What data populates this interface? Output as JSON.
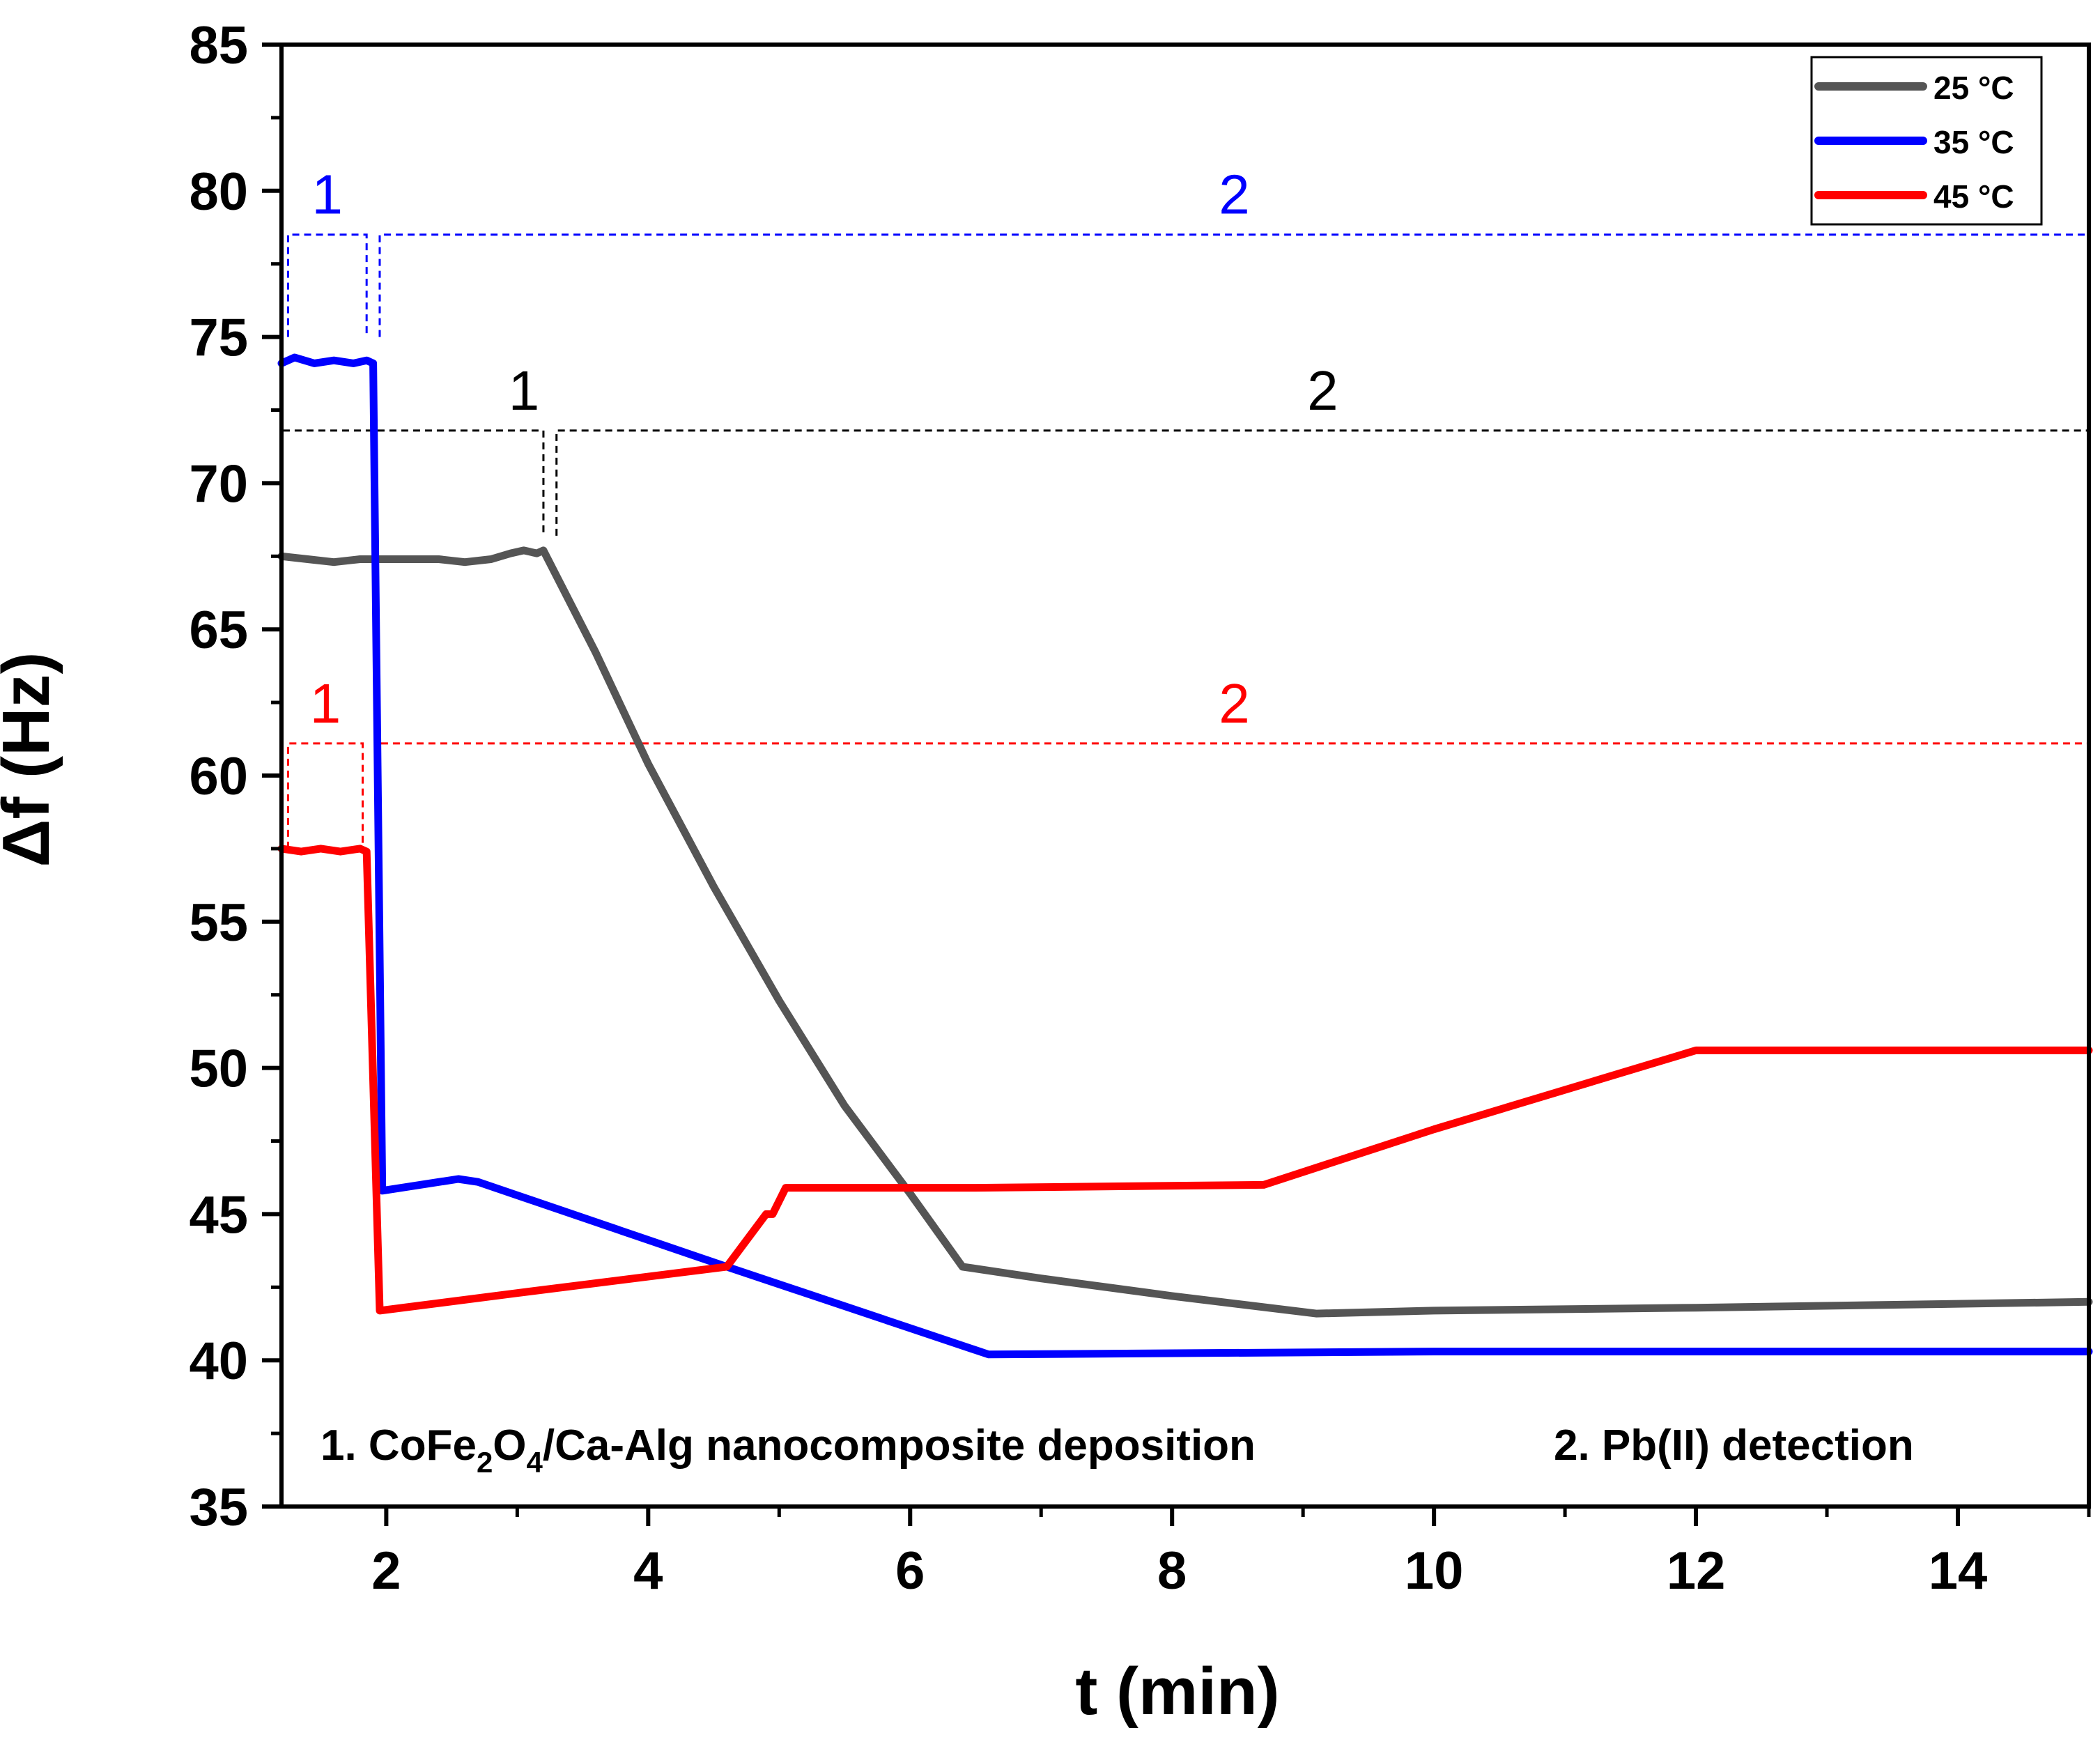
{
  "chart_data": {
    "type": "line",
    "xlabel": "t (min)",
    "ylabel": "Δf (Hz)",
    "xlim": [
      1.2,
      15
    ],
    "ylim": [
      35,
      85
    ],
    "xticks": [
      2,
      4,
      6,
      8,
      10,
      12,
      14
    ],
    "yticks": [
      35,
      40,
      45,
      50,
      55,
      60,
      65,
      70,
      75,
      80,
      85
    ],
    "legend": {
      "position": "top-right"
    },
    "series": [
      {
        "name": "25 °C",
        "color": "#555555",
        "points": [
          [
            1.2,
            67.5
          ],
          [
            1.4,
            67.4
          ],
          [
            1.6,
            67.3
          ],
          [
            1.8,
            67.4
          ],
          [
            2.0,
            67.4
          ],
          [
            2.2,
            67.4
          ],
          [
            2.4,
            67.4
          ],
          [
            2.6,
            67.3
          ],
          [
            2.8,
            67.4
          ],
          [
            2.95,
            67.6
          ],
          [
            3.05,
            67.7
          ],
          [
            3.15,
            67.6
          ],
          [
            3.2,
            67.7
          ],
          [
            3.6,
            64.2
          ],
          [
            4.0,
            60.4
          ],
          [
            4.5,
            56.2
          ],
          [
            5.0,
            52.3
          ],
          [
            5.5,
            48.7
          ],
          [
            6.0,
            45.7
          ],
          [
            6.4,
            43.2
          ],
          [
            7.0,
            42.8
          ],
          [
            8.0,
            42.2
          ],
          [
            9.1,
            41.6
          ],
          [
            10.0,
            41.7
          ],
          [
            12.0,
            41.8
          ],
          [
            15.0,
            42.0
          ]
        ]
      },
      {
        "name": "35 °C",
        "color": "#0000ff",
        "points": [
          [
            1.2,
            74.1
          ],
          [
            1.3,
            74.3
          ],
          [
            1.45,
            74.1
          ],
          [
            1.6,
            74.2
          ],
          [
            1.75,
            74.1
          ],
          [
            1.85,
            74.2
          ],
          [
            1.9,
            74.1
          ],
          [
            1.97,
            45.8
          ],
          [
            2.55,
            46.2
          ],
          [
            2.7,
            46.1
          ],
          [
            4.6,
            43.2
          ],
          [
            6.6,
            40.2
          ],
          [
            10.0,
            40.3
          ],
          [
            15.0,
            40.3
          ]
        ]
      },
      {
        "name": "45 °C",
        "color": "#ff0000",
        "points": [
          [
            1.2,
            57.5
          ],
          [
            1.35,
            57.4
          ],
          [
            1.5,
            57.5
          ],
          [
            1.65,
            57.4
          ],
          [
            1.8,
            57.5
          ],
          [
            1.85,
            57.4
          ],
          [
            1.95,
            41.7
          ],
          [
            3.0,
            42.3
          ],
          [
            4.6,
            43.2
          ],
          [
            4.9,
            45.0
          ],
          [
            4.95,
            45.0
          ],
          [
            5.05,
            45.9
          ],
          [
            6.5,
            45.9
          ],
          [
            8.7,
            46.0
          ],
          [
            10.0,
            47.9
          ],
          [
            12.0,
            50.6
          ],
          [
            15.0,
            50.6
          ]
        ]
      }
    ],
    "regions": [
      {
        "series": "35 °C",
        "color": "#0000ff",
        "label_1": "1",
        "label_2": "2",
        "top": 78.5,
        "bottom": 75.0,
        "x1": [
          1.25,
          1.85
        ],
        "x2": [
          1.95,
          15.0
        ]
      },
      {
        "series": "25 °C",
        "color": "#000000",
        "label_1": "1",
        "label_2": "2",
        "top": 71.8,
        "bottom": 68.2,
        "x1": [
          1.2,
          3.2
        ],
        "x2": [
          3.3,
          15.0
        ]
      },
      {
        "series": "45 °C",
        "color": "#ff0000",
        "label_1": "1",
        "label_2": "2",
        "top": 61.1,
        "bottom": 57.5,
        "x1": [
          1.25,
          1.82
        ],
        "x2": [
          1.95,
          15.0
        ]
      }
    ],
    "annotations": [
      {
        "id": "deposition",
        "prefix": "1. CoFe",
        "sub1": "2",
        "mid": "O",
        "sub2": "4",
        "suffix": "/Ca-Alg nanocomposite deposition"
      },
      {
        "id": "detection",
        "text": "2. Pb(II) detection"
      }
    ]
  }
}
